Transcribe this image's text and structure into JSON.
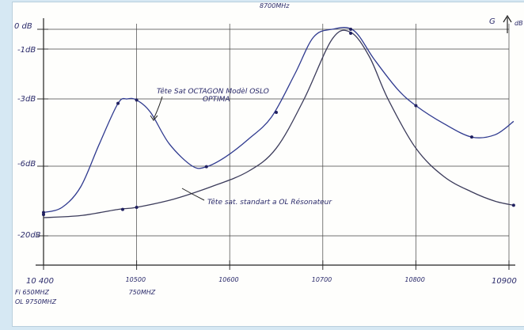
{
  "chart_data": {
    "type": "line",
    "title": "",
    "top_note": "8700MHz",
    "xlabel": "",
    "ylabel": "",
    "corner_label": "G",
    "corner_unit": "dB",
    "x_ticks": [
      {
        "x": 10400,
        "label": "10 400"
      },
      {
        "x": 10500,
        "label": "10500"
      },
      {
        "x": 10600,
        "label": "10600"
      },
      {
        "x": 10700,
        "label": "10700"
      },
      {
        "x": 10800,
        "label": "10800"
      },
      {
        "x": 10900,
        "label": "10900"
      }
    ],
    "x_notes": [
      {
        "x": 10400,
        "lines": [
          "Fi  650MHZ",
          "OL 9750MHZ"
        ]
      },
      {
        "x": 10500,
        "lines": [
          "750MHZ"
        ]
      }
    ],
    "y_ticks": [
      {
        "y": 0,
        "label": "0 dB"
      },
      {
        "y": -1,
        "label": "-1dB"
      },
      {
        "y": -3,
        "label": "-3dB"
      },
      {
        "y": -6,
        "label": "-6dB"
      },
      {
        "y": -20,
        "label": "-20dB"
      }
    ],
    "xlim": [
      10400,
      10900
    ],
    "series": [
      {
        "name": "Tête sat OCTAGON Modèl OSLO OPTIMA",
        "points": [
          [
            10400,
            -10.5
          ],
          [
            10420,
            -10.0
          ],
          [
            10440,
            -8.0
          ],
          [
            10460,
            -5.0
          ],
          [
            10480,
            -3.2
          ],
          [
            10490,
            -3.0
          ],
          [
            10500,
            -3.05
          ],
          [
            10515,
            -3.6
          ],
          [
            10535,
            -5.0
          ],
          [
            10560,
            -6.0
          ],
          [
            10575,
            -6.05
          ],
          [
            10595,
            -5.6
          ],
          [
            10620,
            -4.8
          ],
          [
            10645,
            -3.8
          ],
          [
            10670,
            -2.0
          ],
          [
            10690,
            -0.4
          ],
          [
            10710,
            0.0
          ],
          [
            10733,
            -0.05
          ],
          [
            10755,
            -1.4
          ],
          [
            10780,
            -2.6
          ],
          [
            10800,
            -3.3
          ],
          [
            10830,
            -4.1
          ],
          [
            10860,
            -4.7
          ],
          [
            10885,
            -4.6
          ],
          [
            10905,
            -4.0
          ]
        ],
        "markers": [
          [
            10400,
            -10.5
          ],
          [
            10480,
            -3.2
          ],
          [
            10500,
            -3.05
          ],
          [
            10575,
            -6.05
          ],
          [
            10650,
            -3.6
          ],
          [
            10730,
            0.0
          ],
          [
            10800,
            -3.3
          ],
          [
            10860,
            -4.7
          ]
        ],
        "label_lines": [
          "Tête Sat  OCTAGON  Modèl OSLO",
          "OPTIMA"
        ]
      },
      {
        "name": "Tête sat. standart a OL Résonateur",
        "points": [
          [
            10400,
            -11.0
          ],
          [
            10440,
            -10.8
          ],
          [
            10480,
            -10.2
          ],
          [
            10500,
            -10.0
          ],
          [
            10540,
            -9.2
          ],
          [
            10580,
            -8.0
          ],
          [
            10620,
            -6.5
          ],
          [
            10650,
            -5.2
          ],
          [
            10680,
            -3.0
          ],
          [
            10710,
            -0.5
          ],
          [
            10730,
            -0.15
          ],
          [
            10750,
            -1.3
          ],
          [
            10770,
            -3.0
          ],
          [
            10800,
            -5.2
          ],
          [
            10830,
            -7.0
          ],
          [
            10860,
            -8.5
          ],
          [
            10885,
            -9.4
          ],
          [
            10905,
            -9.8
          ]
        ],
        "markers": [
          [
            10400,
            -10.7
          ],
          [
            10485,
            -10.2
          ],
          [
            10500,
            -10.0
          ],
          [
            10730,
            -0.2
          ],
          [
            10905,
            -9.8
          ]
        ],
        "label_lines": [
          "Tête sat. standart a OL Résonateur"
        ]
      }
    ],
    "grid": true
  }
}
